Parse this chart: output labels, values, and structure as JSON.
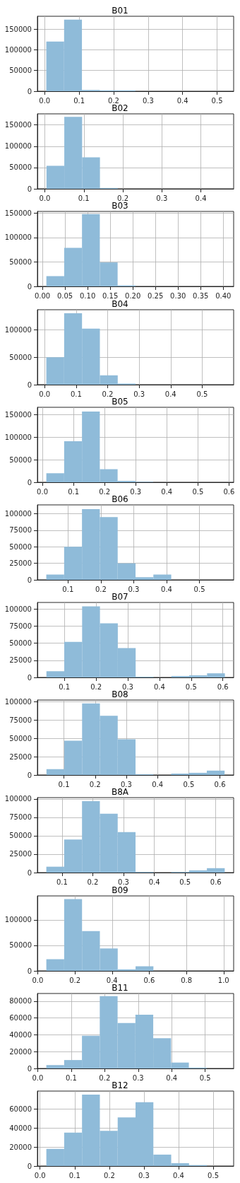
{
  "chart_data": [
    {
      "type": "histogram",
      "title": "B01",
      "color": "#8fbbd9",
      "grid": true,
      "bins": [
        0.0047,
        0.0564,
        0.1081,
        0.1598,
        0.2115,
        0.2632,
        0.3149,
        0.3666,
        0.4183,
        0.47,
        0.5217
      ],
      "values": [
        120000,
        173000,
        3000,
        2000,
        2000,
        0,
        0,
        0,
        0,
        0
      ],
      "xlim": [
        -0.021,
        0.548
      ],
      "xticks": [
        {
          "value": 0,
          "label": "0.0"
        },
        0.1,
        0.2,
        0.3,
        0.4,
        0.5
      ],
      "ylim": [
        0,
        181000
      ],
      "yticks": [
        0,
        50000,
        100000,
        150000
      ]
    },
    {
      "type": "histogram",
      "title": "B02",
      "color": "#8fbbd9",
      "grid": true,
      "bins": [
        0.0042,
        0.0499,
        0.0956,
        0.1413,
        0.187,
        0.2327,
        0.2784,
        0.3241,
        0.3698,
        0.4155,
        0.4612
      ],
      "values": [
        54000,
        169000,
        74000,
        2000,
        0,
        0,
        0,
        0,
        0,
        0
      ],
      "xlim": [
        -0.019,
        0.484
      ],
      "xticks": [
        {
          "value": 0,
          "label": "0.0"
        },
        0.1,
        0.2,
        0.3,
        0.4
      ],
      "ylim": [
        0,
        176000
      ],
      "yticks": [
        0,
        50000,
        100000,
        150000
      ]
    },
    {
      "type": "histogram",
      "title": "B03",
      "color": "#8fbbd9",
      "grid": true,
      "bins": [
        0.0088,
        0.0482,
        0.0876,
        0.127,
        0.1664,
        0.2058,
        0.2452,
        0.2846,
        0.324,
        0.3634,
        0.4028
      ],
      "values": [
        21000,
        79000,
        148000,
        49000,
        2000,
        0,
        0,
        0,
        0,
        0
      ],
      "xlim": [
        -0.011,
        0.423
      ],
      "xticks": [
        {
          "value": 0,
          "label": "0.00"
        },
        0.05,
        {
          "value": 0.1,
          "label": "0.10"
        },
        0.15,
        {
          "value": 0.2,
          "label": "0.20"
        },
        0.25,
        {
          "value": 0.3,
          "label": "0.30"
        },
        0.35,
        {
          "value": 0.4,
          "label": "0.40"
        }
      ],
      "ylim": [
        0,
        153400
      ],
      "yticks": [
        0,
        50000,
        100000,
        150000
      ]
    },
    {
      "type": "histogram",
      "title": "B04",
      "color": "#8fbbd9",
      "grid": true,
      "bins": [
        0.0052,
        0.0619,
        0.1186,
        0.1753,
        0.232,
        0.2887,
        0.3454,
        0.4021,
        0.4588,
        0.5155,
        0.5722
      ],
      "values": [
        50000,
        130000,
        102000,
        17000,
        2000,
        0,
        0,
        0,
        0,
        0
      ],
      "xlim": [
        -0.023,
        0.6
      ],
      "xticks": [
        {
          "value": 0,
          "label": "0.0"
        },
        0.1,
        0.2,
        0.3,
        0.4,
        0.5
      ],
      "ylim": [
        0,
        136400
      ],
      "yticks": [
        0,
        50000,
        100000
      ]
    },
    {
      "type": "histogram",
      "title": "B05",
      "color": "#8fbbd9",
      "grid": true,
      "bins": [
        0.0127,
        0.07,
        0.1273,
        0.1846,
        0.2419,
        0.2992,
        0.3565,
        0.4138,
        0.4711,
        0.5284,
        0.5857
      ],
      "values": [
        20000,
        91000,
        157000,
        29000,
        3000,
        1000,
        0,
        0,
        0,
        0
      ],
      "xlim": [
        -0.016,
        0.615
      ],
      "xticks": [
        {
          "value": 0,
          "label": "0.0"
        },
        0.1,
        0.2,
        0.3,
        0.4,
        0.5,
        0.6
      ],
      "ylim": [
        0,
        166400
      ],
      "yticks": [
        0,
        50000,
        100000,
        150000
      ]
    },
    {
      "type": "histogram",
      "title": "B06",
      "color": "#8fbbd9",
      "grid": true,
      "bins": [
        0.034,
        0.0883,
        0.1426,
        0.1969,
        0.2512,
        0.3055,
        0.3598,
        0.4141,
        0.4684,
        0.5227,
        0.577
      ],
      "values": [
        8000,
        50000,
        107000,
        95000,
        25000,
        4000,
        8000,
        0,
        0,
        0
      ],
      "xlim": [
        0.007,
        0.604
      ],
      "xticks": [
        0.1,
        0.2,
        0.3,
        0.4,
        0.5
      ],
      "ylim": [
        0,
        113500
      ],
      "yticks": [
        0,
        25000,
        50000,
        75000,
        100000
      ]
    },
    {
      "type": "histogram",
      "title": "B07",
      "color": "#8fbbd9",
      "grid": true,
      "bins": [
        0.0434,
        0.0997,
        0.156,
        0.2123,
        0.2686,
        0.3249,
        0.3812,
        0.4375,
        0.4938,
        0.5501,
        0.6064
      ],
      "values": [
        9000,
        52000,
        104000,
        79000,
        43000,
        1000,
        0,
        2000,
        3000,
        6000
      ],
      "xlim": [
        0.015,
        0.634
      ],
      "xticks": [
        0.1,
        0.2,
        0.3,
        0.4,
        0.5,
        0.6
      ],
      "ylim": [
        0,
        109600
      ],
      "yticks": [
        0,
        25000,
        50000,
        75000,
        100000
      ]
    },
    {
      "type": "histogram",
      "title": "B08",
      "color": "#8fbbd9",
      "grid": true,
      "bins": [
        0.044,
        0.1011,
        0.1582,
        0.2153,
        0.2724,
        0.3295,
        0.3866,
        0.4437,
        0.5008,
        0.5579,
        0.615
      ],
      "values": [
        8000,
        47000,
        98000,
        81000,
        49000,
        1000,
        0,
        2000,
        3000,
        6000
      ],
      "xlim": [
        0.015,
        0.644
      ],
      "xticks": [
        0.1,
        0.2,
        0.3,
        0.4,
        0.5,
        0.6
      ],
      "ylim": [
        0,
        102600
      ],
      "yticks": [
        0,
        25000,
        50000,
        75000,
        100000
      ]
    },
    {
      "type": "histogram",
      "title": "B8A",
      "color": "#8fbbd9",
      "grid": true,
      "bins": [
        0.049,
        0.107,
        0.165,
        0.223,
        0.281,
        0.339,
        0.397,
        0.455,
        0.513,
        0.571,
        0.629
      ],
      "values": [
        8000,
        45000,
        97000,
        80000,
        55000,
        1000,
        0,
        1000,
        3000,
        6000
      ],
      "xlim": [
        0.02,
        0.658
      ],
      "xticks": [
        0.1,
        0.2,
        0.3,
        0.4,
        0.5,
        0.6
      ],
      "ylim": [
        0,
        101900
      ],
      "yticks": [
        0,
        25000,
        50000,
        75000,
        100000
      ]
    },
    {
      "type": "histogram",
      "title": "B09",
      "color": "#8fbbd9",
      "grid": true,
      "bins": [
        0.0464,
        0.1424,
        0.2384,
        0.3344,
        0.4304,
        0.5264,
        0.6224,
        0.7184,
        0.8144,
        0.9104,
        1.0064
      ],
      "values": [
        23000,
        141000,
        78000,
        44000,
        3000,
        9000,
        0,
        0,
        0,
        0
      ],
      "xlim": [
        -0.0016,
        1.054
      ],
      "xticks": [
        {
          "value": 0,
          "label": "0.0"
        },
        0.2,
        0.4,
        0.6,
        0.8,
        {
          "value": 1,
          "label": "1.0"
        }
      ],
      "ylim": [
        0,
        147200
      ],
      "yticks": [
        0,
        50000,
        100000
      ]
    },
    {
      "type": "histogram",
      "title": "B11",
      "color": "#8fbbd9",
      "grid": true,
      "bins": [
        0.0257,
        0.0789,
        0.1321,
        0.1853,
        0.2385,
        0.2917,
        0.3449,
        0.3981,
        0.4513,
        0.5045,
        0.5577
      ],
      "values": [
        4000,
        10000,
        39000,
        86000,
        54000,
        64000,
        36000,
        7000,
        1000,
        0
      ],
      "xlim": [
        -0.0009,
        0.585
      ],
      "xticks": [
        {
          "value": 0,
          "label": "0.0"
        },
        0.1,
        0.2,
        0.3,
        0.4,
        0.5
      ],
      "ylim": [
        0,
        89200
      ],
      "yticks": [
        0,
        20000,
        40000,
        60000,
        80000
      ]
    },
    {
      "type": "histogram",
      "title": "B12",
      "color": "#8fbbd9",
      "grid": true,
      "bins": [
        0.0182,
        0.0697,
        0.1212,
        0.1727,
        0.2242,
        0.2757,
        0.3272,
        0.3787,
        0.4302,
        0.4817,
        0.5332
      ],
      "values": [
        18000,
        35000,
        75000,
        37000,
        51000,
        67000,
        12000,
        3000,
        1000,
        0
      ],
      "xlim": [
        -0.0076,
        0.559
      ],
      "xticks": [
        {
          "value": 0,
          "label": "0.0"
        },
        0.1,
        0.2,
        0.3,
        0.4,
        0.5
      ],
      "ylim": [
        0,
        78700
      ],
      "yticks": [
        0,
        20000,
        40000,
        60000
      ]
    }
  ]
}
